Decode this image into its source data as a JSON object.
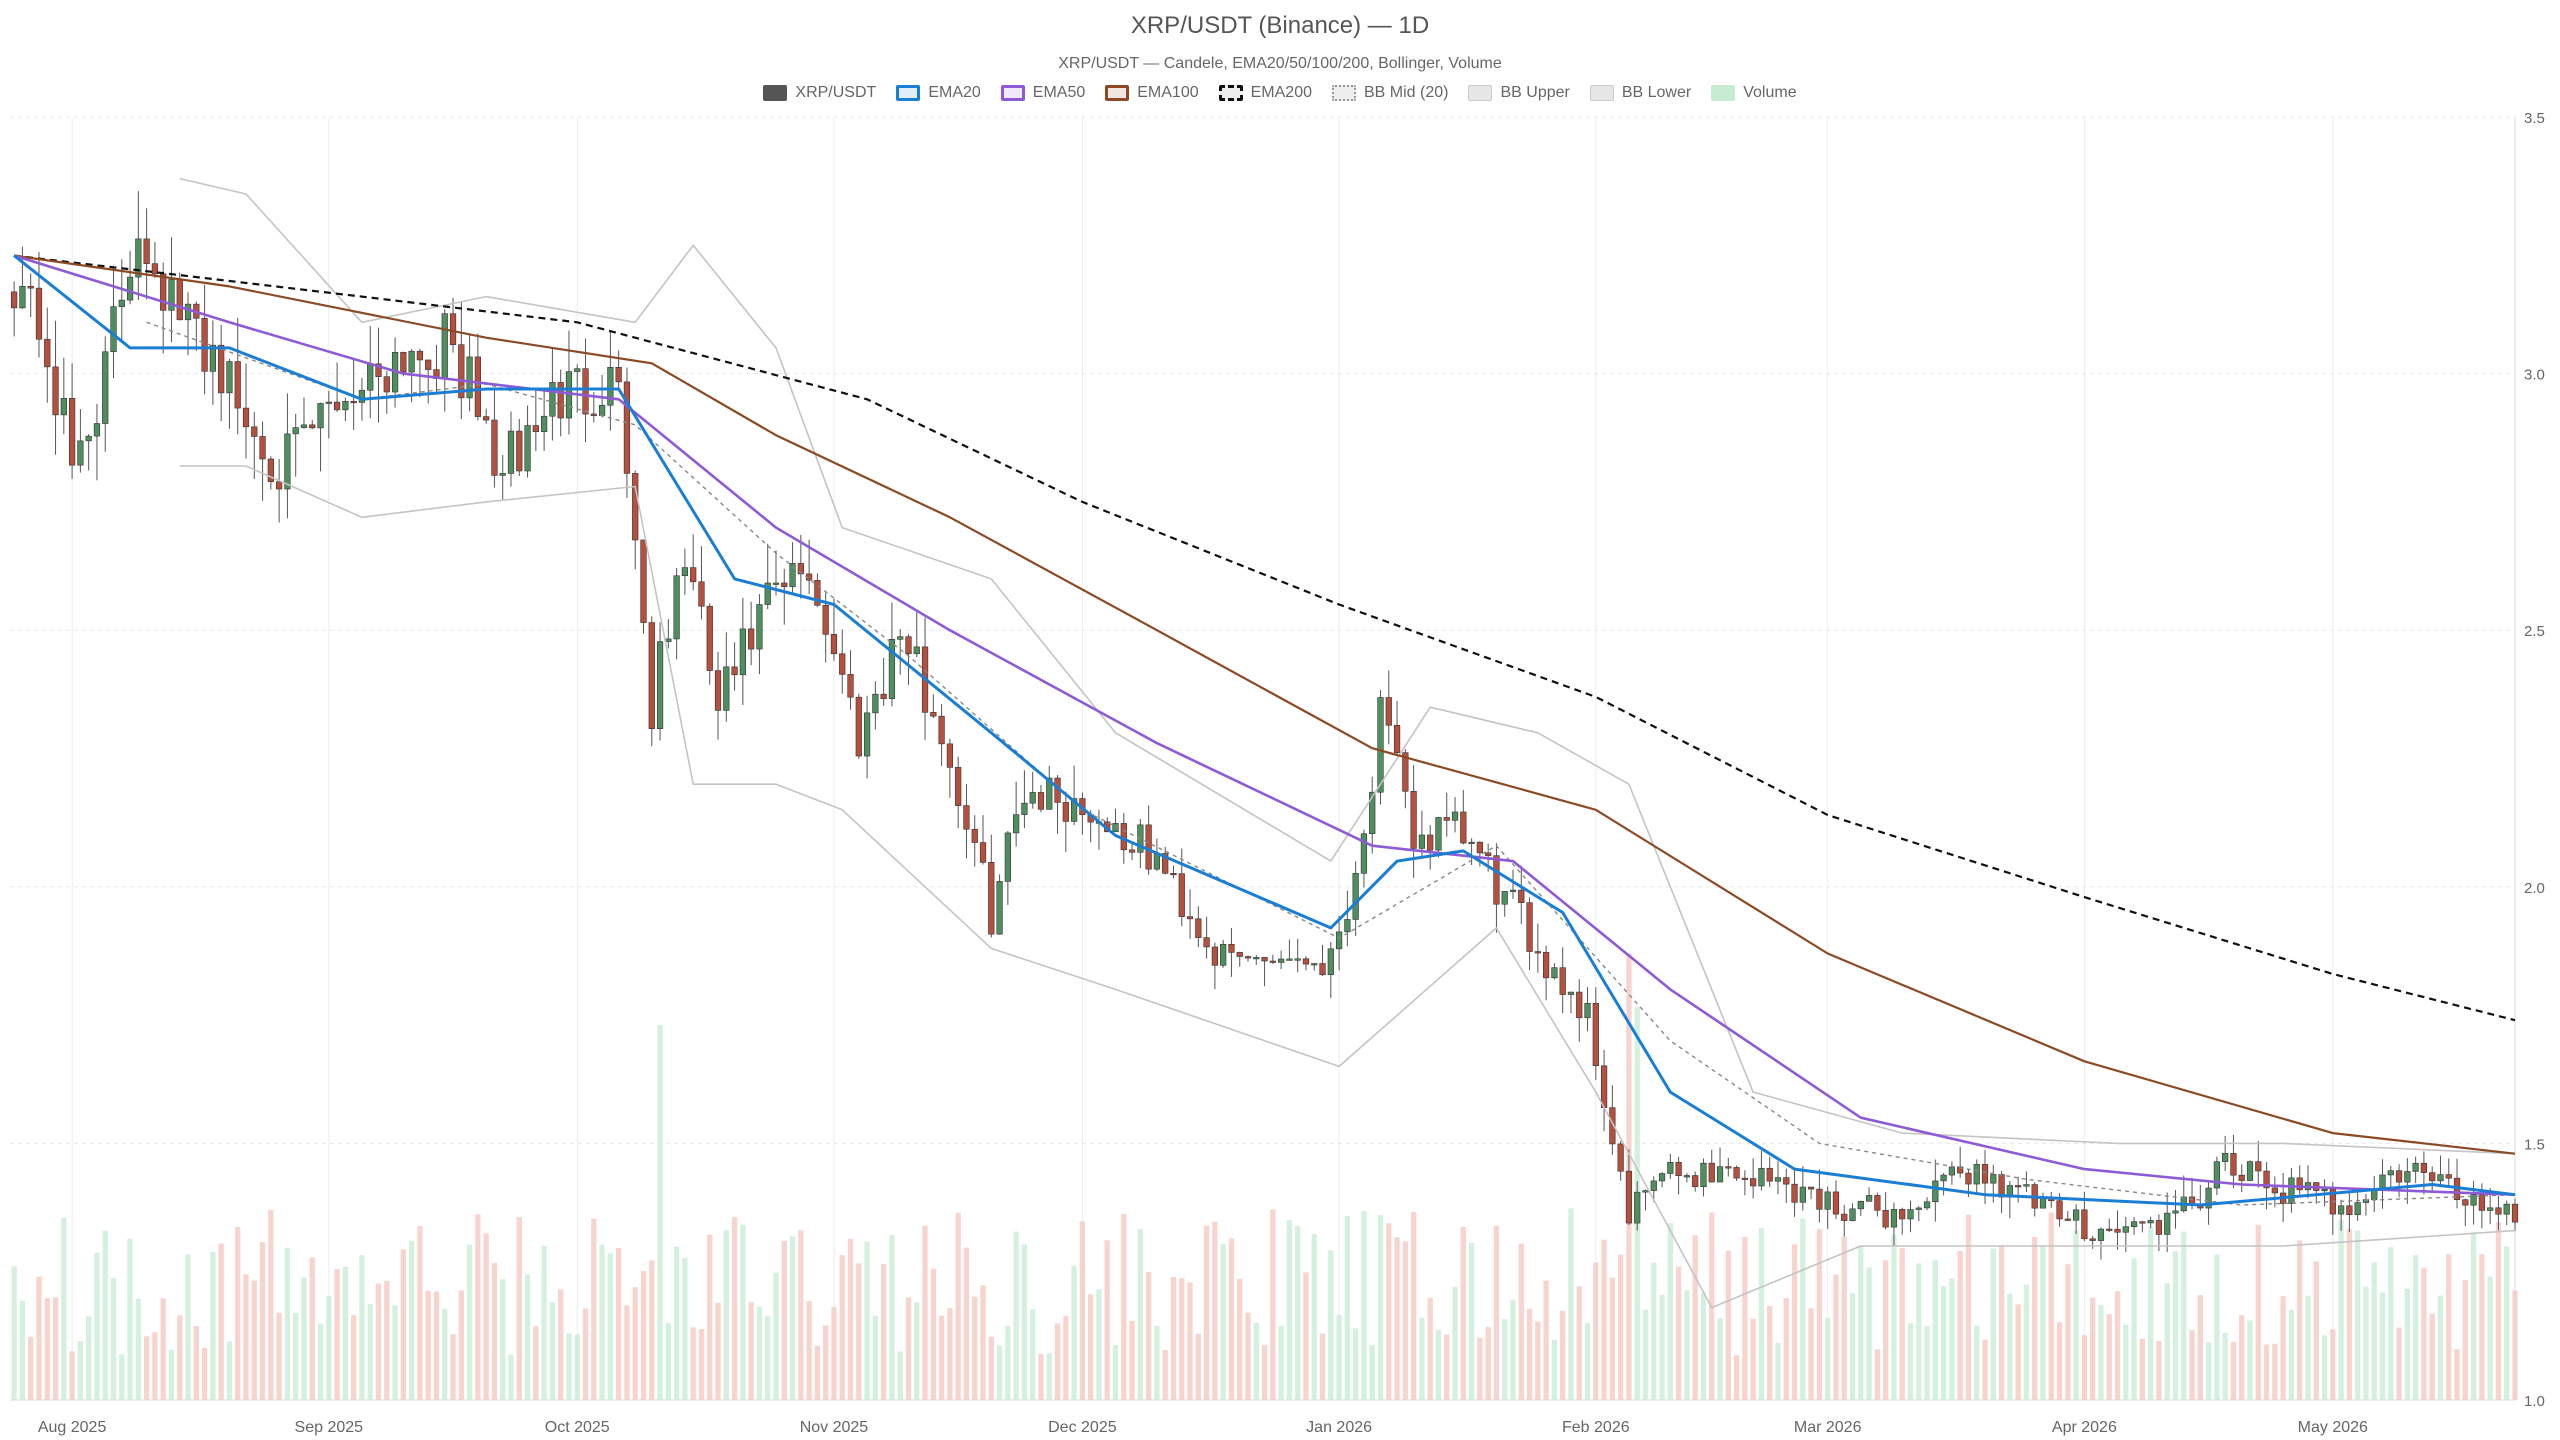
{
  "title": "XRP/USDT (Binance) — 1D",
  "subtitle": "XRP/USDT — Candele, EMA20/50/100/200, Bollinger, Volume",
  "legend": [
    {
      "label": "XRP/USDT",
      "color": "#555555",
      "style": "fill"
    },
    {
      "label": "EMA20",
      "color": "#1a7fd4",
      "style": "line"
    },
    {
      "label": "EMA50",
      "color": "#8e5ad6",
      "style": "line"
    },
    {
      "label": "EMA100",
      "color": "#8b4a24",
      "style": "line"
    },
    {
      "label": "EMA200",
      "color": "#111111",
      "style": "dashed"
    },
    {
      "label": "BB Mid (20)",
      "color": "#999999",
      "style": "dotted"
    },
    {
      "label": "BB Upper",
      "color": "#bbbbbb",
      "style": "light"
    },
    {
      "label": "BB Lower",
      "color": "#bbbbbb",
      "style": "light"
    },
    {
      "label": "Volume",
      "color": "#c6ecd4",
      "style": "volume"
    }
  ],
  "chart_data": {
    "type": "candlestick",
    "title": "XRP/USDT (Binance) — 1D",
    "interval": "1D",
    "x_range": [
      "2025-07-25",
      "2026-05-23"
    ],
    "ylim": [
      1.0,
      3.5
    ],
    "yticks": [
      "1.0",
      "1.5",
      "2.0",
      "2.5",
      "3.0",
      "3.5"
    ],
    "y_axis_side": "right",
    "xticks": [
      {
        "date": "2025-08-01",
        "label": "Aug 2025"
      },
      {
        "date": "2025-09-01",
        "label": "Sep 2025"
      },
      {
        "date": "2025-10-01",
        "label": "Oct 2025"
      },
      {
        "date": "2025-11-01",
        "label": "Nov 2025"
      },
      {
        "date": "2025-12-01",
        "label": "Dec 2025"
      },
      {
        "date": "2026-01-01",
        "label": "Jan 2026"
      },
      {
        "date": "2026-02-01",
        "label": "Feb 2026"
      },
      {
        "date": "2026-03-01",
        "label": "Mar 2026"
      },
      {
        "date": "2026-04-01",
        "label": "Apr 2026"
      },
      {
        "date": "2026-05-01",
        "label": "May 2026"
      }
    ],
    "grid": true,
    "close_anchors": [
      [
        "2025-07-25",
        3.2
      ],
      [
        "2025-07-28",
        3.1
      ],
      [
        "2025-08-01",
        2.82
      ],
      [
        "2025-08-05",
        3.0
      ],
      [
        "2025-08-09",
        3.3
      ],
      [
        "2025-08-14",
        3.1
      ],
      [
        "2025-08-18",
        3.05
      ],
      [
        "2025-08-22",
        2.9
      ],
      [
        "2025-08-27",
        2.82
      ],
      [
        "2025-09-02",
        2.95
      ],
      [
        "2025-09-10",
        3.05
      ],
      [
        "2025-09-16",
        3.05
      ],
      [
        "2025-09-22",
        2.8
      ],
      [
        "2025-09-28",
        2.95
      ],
      [
        "2025-10-06",
        3.0
      ],
      [
        "2025-10-10",
        2.35
      ],
      [
        "2025-10-14",
        2.65
      ],
      [
        "2025-10-18",
        2.35
      ],
      [
        "2025-10-24",
        2.55
      ],
      [
        "2025-10-29",
        2.62
      ],
      [
        "2025-11-04",
        2.3
      ],
      [
        "2025-11-09",
        2.5
      ],
      [
        "2025-11-14",
        2.3
      ],
      [
        "2025-11-20",
        1.95
      ],
      [
        "2025-11-24",
        2.2
      ],
      [
        "2025-12-02",
        2.15
      ],
      [
        "2025-12-10",
        2.05
      ],
      [
        "2025-12-18",
        1.85
      ],
      [
        "2025-12-24",
        1.87
      ],
      [
        "2025-12-31",
        1.86
      ],
      [
        "2026-01-04",
        2.1
      ],
      [
        "2026-01-06",
        2.33
      ],
      [
        "2026-01-10",
        2.1
      ],
      [
        "2026-01-16",
        2.1
      ],
      [
        "2026-01-22",
        1.95
      ],
      [
        "2026-01-31",
        1.75
      ],
      [
        "2026-02-05",
        1.35
      ],
      [
        "2026-02-08",
        1.43
      ],
      [
        "2026-02-16",
        1.45
      ],
      [
        "2026-02-24",
        1.42
      ],
      [
        "2026-03-02",
        1.38
      ],
      [
        "2026-03-10",
        1.36
      ],
      [
        "2026-03-18",
        1.45
      ],
      [
        "2026-03-23",
        1.42
      ],
      [
        "2026-03-28",
        1.36
      ],
      [
        "2026-04-04",
        1.33
      ],
      [
        "2026-04-12",
        1.35
      ],
      [
        "2026-04-18",
        1.45
      ],
      [
        "2026-04-25",
        1.41
      ],
      [
        "2026-05-02",
        1.38
      ],
      [
        "2026-05-10",
        1.45
      ],
      [
        "2026-05-14",
        1.42
      ],
      [
        "2026-05-18",
        1.39
      ],
      [
        "2026-05-23",
        1.37
      ]
    ],
    "volume_spikes": [
      {
        "date": "2025-10-11",
        "level": 0.84
      },
      {
        "date": "2026-02-05",
        "level": 1.0
      },
      {
        "date": "2026-02-06",
        "level": 0.88
      }
    ],
    "series": [
      {
        "name": "EMA20",
        "values": [
          [
            "2025-07-25",
            3.23
          ],
          [
            "2025-08-08",
            3.05
          ],
          [
            "2025-08-20",
            3.05
          ],
          [
            "2025-09-05",
            2.95
          ],
          [
            "2025-09-20",
            2.97
          ],
          [
            "2025-10-06",
            2.97
          ],
          [
            "2025-10-20",
            2.6
          ],
          [
            "2025-11-01",
            2.55
          ],
          [
            "2025-11-20",
            2.3
          ],
          [
            "2025-12-05",
            2.1
          ],
          [
            "2025-12-31",
            1.92
          ],
          [
            "2026-01-08",
            2.05
          ],
          [
            "2026-01-16",
            2.07
          ],
          [
            "2026-01-28",
            1.95
          ],
          [
            "2026-02-10",
            1.6
          ],
          [
            "2026-02-25",
            1.45
          ],
          [
            "2026-03-20",
            1.4
          ],
          [
            "2026-04-15",
            1.38
          ],
          [
            "2026-05-13",
            1.42
          ],
          [
            "2026-05-23",
            1.4
          ]
        ]
      },
      {
        "name": "EMA50",
        "values": [
          [
            "2025-07-25",
            3.23
          ],
          [
            "2025-08-20",
            3.1
          ],
          [
            "2025-09-10",
            3.0
          ],
          [
            "2025-10-06",
            2.95
          ],
          [
            "2025-10-25",
            2.7
          ],
          [
            "2025-11-15",
            2.5
          ],
          [
            "2025-12-10",
            2.28
          ],
          [
            "2026-01-05",
            2.08
          ],
          [
            "2026-01-22",
            2.05
          ],
          [
            "2026-02-10",
            1.8
          ],
          [
            "2026-03-05",
            1.55
          ],
          [
            "2026-04-01",
            1.45
          ],
          [
            "2026-04-20",
            1.42
          ],
          [
            "2026-05-23",
            1.4
          ]
        ]
      },
      {
        "name": "EMA100",
        "values": [
          [
            "2025-07-25",
            3.23
          ],
          [
            "2025-08-20",
            3.17
          ],
          [
            "2025-09-20",
            3.07
          ],
          [
            "2025-10-10",
            3.02
          ],
          [
            "2025-10-25",
            2.88
          ],
          [
            "2025-11-15",
            2.72
          ],
          [
            "2025-12-10",
            2.5
          ],
          [
            "2026-01-05",
            2.27
          ],
          [
            "2026-02-01",
            2.15
          ],
          [
            "2026-03-01",
            1.87
          ],
          [
            "2026-04-01",
            1.66
          ],
          [
            "2026-05-01",
            1.52
          ],
          [
            "2026-05-23",
            1.48
          ]
        ]
      },
      {
        "name": "EMA200",
        "values": [
          [
            "2025-07-25",
            3.23
          ],
          [
            "2025-09-05",
            3.15
          ],
          [
            "2025-10-01",
            3.1
          ],
          [
            "2025-11-05",
            2.95
          ],
          [
            "2025-12-01",
            2.75
          ],
          [
            "2026-01-01",
            2.55
          ],
          [
            "2026-02-01",
            2.37
          ],
          [
            "2026-03-01",
            2.14
          ],
          [
            "2026-04-01",
            1.98
          ],
          [
            "2026-05-01",
            1.83
          ],
          [
            "2026-05-23",
            1.74
          ]
        ]
      },
      {
        "name": "BB Mid (20)",
        "values": [
          [
            "2025-08-10",
            3.1
          ],
          [
            "2025-09-05",
            2.95
          ],
          [
            "2025-09-20",
            2.98
          ],
          [
            "2025-10-08",
            2.9
          ],
          [
            "2025-10-25",
            2.65
          ],
          [
            "2025-11-10",
            2.45
          ],
          [
            "2025-12-01",
            2.15
          ],
          [
            "2026-01-01",
            1.9
          ],
          [
            "2026-01-20",
            2.08
          ],
          [
            "2026-02-10",
            1.7
          ],
          [
            "2026-02-28",
            1.5
          ],
          [
            "2026-03-25",
            1.43
          ],
          [
            "2026-04-20",
            1.38
          ],
          [
            "2026-05-23",
            1.4
          ]
        ]
      },
      {
        "name": "BB Upper",
        "values": [
          [
            "2025-08-14",
            3.38
          ],
          [
            "2025-08-22",
            3.35
          ],
          [
            "2025-09-05",
            3.1
          ],
          [
            "2025-09-20",
            3.15
          ],
          [
            "2025-10-08",
            3.1
          ],
          [
            "2025-10-15",
            3.25
          ],
          [
            "2025-10-25",
            3.05
          ],
          [
            "2025-11-02",
            2.7
          ],
          [
            "2025-11-20",
            2.6
          ],
          [
            "2025-12-05",
            2.3
          ],
          [
            "2025-12-31",
            2.05
          ],
          [
            "2026-01-12",
            2.35
          ],
          [
            "2026-01-25",
            2.3
          ],
          [
            "2026-02-05",
            2.2
          ],
          [
            "2026-02-20",
            1.6
          ],
          [
            "2026-03-10",
            1.52
          ],
          [
            "2026-04-05",
            1.5
          ],
          [
            "2026-04-25",
            1.5
          ],
          [
            "2026-05-23",
            1.48
          ]
        ]
      },
      {
        "name": "BB Lower",
        "values": [
          [
            "2025-08-14",
            2.82
          ],
          [
            "2025-08-22",
            2.82
          ],
          [
            "2025-09-05",
            2.72
          ],
          [
            "2025-09-20",
            2.75
          ],
          [
            "2025-10-08",
            2.78
          ],
          [
            "2025-10-15",
            2.2
          ],
          [
            "2025-10-25",
            2.2
          ],
          [
            "2025-11-02",
            2.15
          ],
          [
            "2025-11-20",
            1.88
          ],
          [
            "2025-12-05",
            1.8
          ],
          [
            "2026-01-01",
            1.65
          ],
          [
            "2026-01-20",
            1.92
          ],
          [
            "2026-02-01",
            1.6
          ],
          [
            "2026-02-15",
            1.18
          ],
          [
            "2026-03-05",
            1.3
          ],
          [
            "2026-04-05",
            1.3
          ],
          [
            "2026-04-25",
            1.3
          ],
          [
            "2026-05-23",
            1.33
          ]
        ]
      }
    ]
  }
}
